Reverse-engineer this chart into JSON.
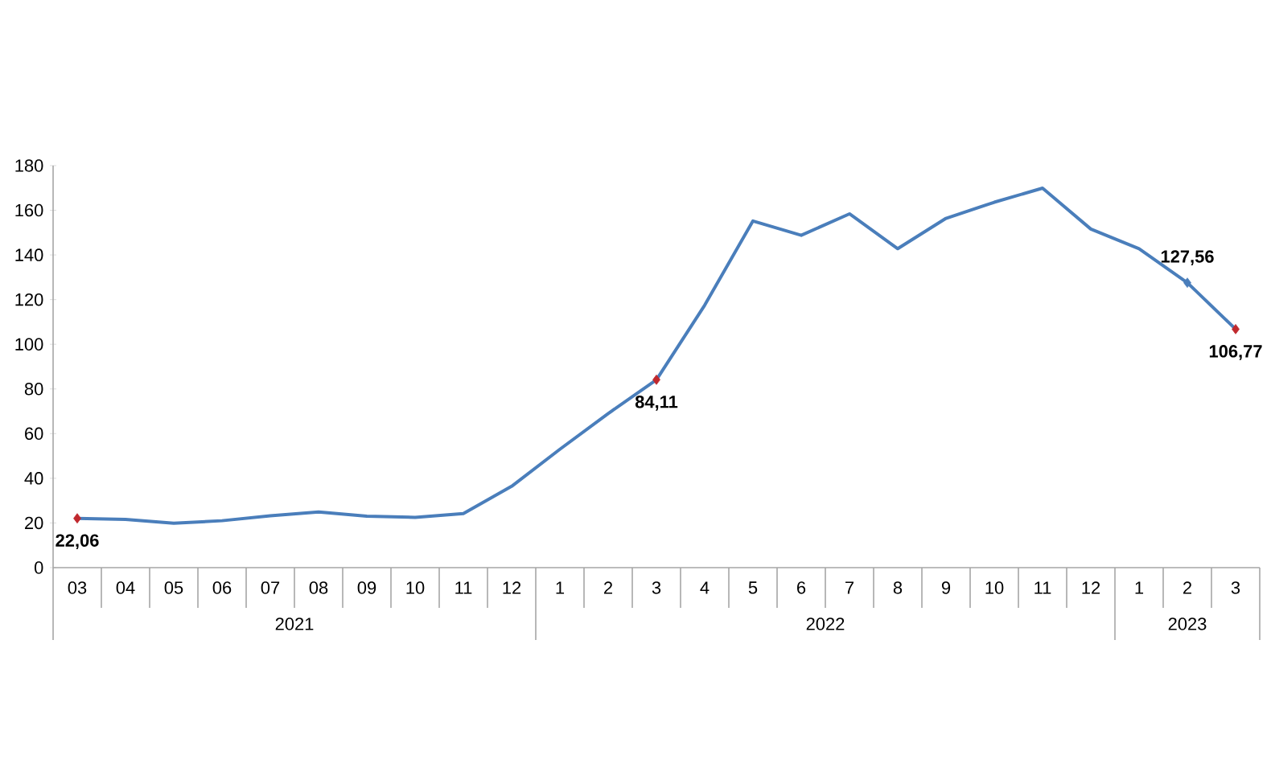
{
  "chart_data": {
    "type": "line",
    "categories": [
      "03",
      "04",
      "05",
      "06",
      "07",
      "08",
      "09",
      "10",
      "11",
      "12",
      "1",
      "2",
      "3",
      "4",
      "5",
      "6",
      "7",
      "8",
      "9",
      "10",
      "11",
      "12",
      "1",
      "2",
      "3"
    ],
    "annotations": [
      "2021",
      "2022",
      "2023"
    ],
    "series": [
      {
        "color": "#4a7ebb",
        "values": [
          22.06,
          21.6,
          19.9,
          21,
          23.2,
          24.9,
          23,
          22.5,
          24.2,
          36.4,
          53,
          69,
          84.11,
          117.5,
          155.2,
          148.8,
          158.4,
          142.8,
          156.4,
          163.6,
          169.9,
          151.6,
          142.8,
          127.56,
          106.77
        ],
        "value_labels": [
          "22,06",
          null,
          null,
          null,
          null,
          null,
          null,
          null,
          null,
          null,
          null,
          null,
          "84,11",
          null,
          null,
          null,
          null,
          null,
          null,
          null,
          null,
          null,
          null,
          "127,56",
          "106,77"
        ],
        "colors": [
          "#c0282d",
          null,
          null,
          null,
          null,
          null,
          null,
          null,
          null,
          null,
          null,
          null,
          "#c0282d",
          null,
          null,
          null,
          null,
          null,
          null,
          null,
          null,
          null,
          null,
          "#4a7ebb",
          "#c0282d"
        ]
      }
    ],
    "ylim": [
      0,
      180
    ],
    "yticks": [
      0,
      20,
      40,
      60,
      80,
      100,
      120,
      140,
      160,
      180
    ],
    "line_style": "solid"
  }
}
